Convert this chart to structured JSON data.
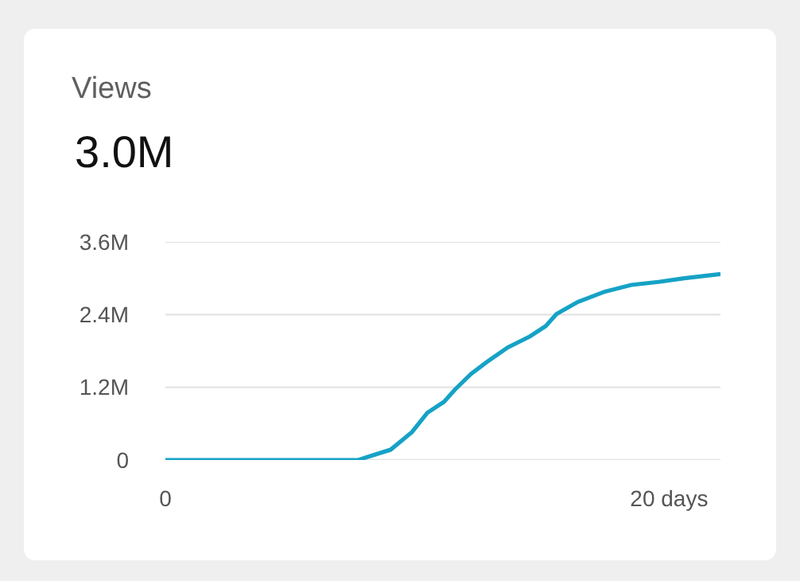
{
  "chart_data": {
    "type": "line",
    "title": "Views",
    "subtitle": "3.0M",
    "x": [
      0,
      7.66,
      8.09,
      8.94,
      9.79,
      10.4,
      11.06,
      11.49,
      12.13,
      12.77,
      13.6,
      14.47,
      15.1,
      15.53,
      16.38,
      17.45,
      18.5,
      19.57,
      20.6,
      22.04
    ],
    "series": [
      {
        "color": "#16a2c6",
        "values": [
          0,
          0,
          0.06,
          0.17,
          0.46,
          0.78,
          0.96,
          1.16,
          1.42,
          1.62,
          1.86,
          2.04,
          2.21,
          2.41,
          2.61,
          2.78,
          2.89,
          2.94,
          3.0,
          3.07
        ]
      }
    ],
    "xlim": [
      0,
      22.04
    ],
    "xticks": [
      0,
      {
        "value": 20,
        "label": "20 days"
      }
    ],
    "ylim": [
      0,
      3.6
    ],
    "yticks": [
      0,
      {
        "value": 1.2,
        "label": "1.2M"
      },
      {
        "value": 2.4,
        "label": "2.4M"
      },
      {
        "value": 3.6,
        "label": "3.6M"
      }
    ],
    "grid": "y",
    "marker": "none",
    "line_style": "solid"
  }
}
